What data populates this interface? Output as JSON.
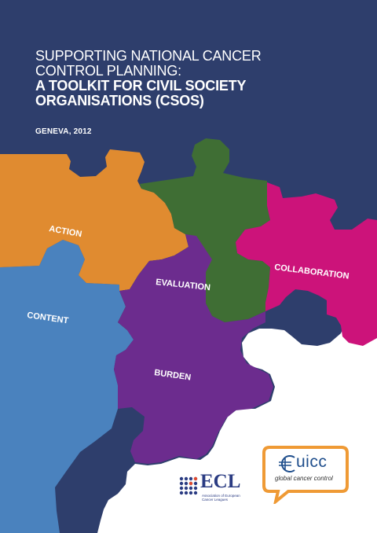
{
  "cover": {
    "title_line1": "SUPPORTING NATIONAL CANCER",
    "title_line2": "CONTROL PLANNING:",
    "title_line3": "A TOOLKIT FOR CIVIL SOCIETY",
    "title_line4": "ORGANISATIONS (CSOS)",
    "place_date": "GENEVA, 2012"
  },
  "puzzle": {
    "action": "ACTION",
    "evaluation": "EVALUATION",
    "collaboration": "COLLABORATION",
    "content": "CONTENT",
    "burden": "BURDEN"
  },
  "logos": {
    "ecl_name": "ECL",
    "ecl_sub1": "Association of European",
    "ecl_sub2": "Cancer Leagues",
    "uicc_name": "uicc",
    "uicc_tagline": "global cancer control"
  },
  "colors": {
    "navy": "#2e3e6c",
    "orange": "#e08b30",
    "green": "#3f6e34",
    "magenta": "#cc137a",
    "blue": "#4a82be",
    "purple": "#6c2c8e",
    "ecl_blue": "#2a3b82",
    "uicc_orange": "#ef9a35",
    "uicc_blue": "#1f4e8c"
  }
}
